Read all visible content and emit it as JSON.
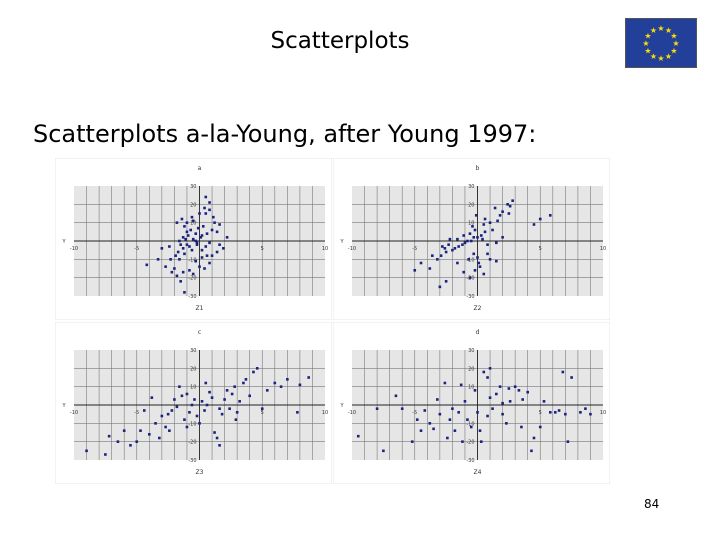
{
  "slide": {
    "title": "Scatterplots",
    "subtitle": "Scatterplots a-la-Young, after Young 1997:",
    "page_number": "84"
  },
  "flag": {
    "icon": "eu-flag-icon",
    "background": "#223f9a",
    "star_color": "#ffdd00"
  },
  "colors": {
    "point": "#1a237e",
    "plot_bg": "#e6e6e6",
    "gridline": "#7a7a7a"
  },
  "chart_data": [
    {
      "type": "scatter",
      "title": "a",
      "xlabel": "Z1",
      "ylabel": "Y",
      "xlim": [
        -10,
        10
      ],
      "ylim": [
        -30,
        30
      ],
      "grid": true,
      "x_ticks": [
        "-10",
        "-5",
        "5",
        "10"
      ],
      "y_ticks": [
        "30",
        "20",
        "10",
        "-10",
        "-20",
        "-30"
      ],
      "points": [
        [
          -1.2,
          -28
        ],
        [
          -1.5,
          -22
        ],
        [
          -0.5,
          -18
        ],
        [
          -2,
          -15
        ],
        [
          -2.3,
          -10
        ],
        [
          -1.6,
          -10
        ],
        [
          -1.9,
          -8
        ],
        [
          -1.2,
          -7
        ],
        [
          -0.6,
          -5
        ],
        [
          -1.3,
          -4
        ],
        [
          -0.8,
          -3
        ],
        [
          -1,
          -2
        ],
        [
          -1.5,
          -2
        ],
        [
          -0.2,
          -1
        ],
        [
          -1.6,
          0
        ],
        [
          -0.3,
          0
        ],
        [
          -1.1,
          1
        ],
        [
          -0.5,
          1
        ],
        [
          -1.3,
          2
        ],
        [
          -0.9,
          3
        ],
        [
          -0.3,
          4
        ],
        [
          0.2,
          3
        ],
        [
          -1,
          5
        ],
        [
          -0.7,
          6
        ],
        [
          -0.1,
          7
        ],
        [
          -1.2,
          8
        ],
        [
          -1,
          10
        ],
        [
          -1.8,
          10
        ],
        [
          -0.5,
          11
        ],
        [
          -0.6,
          13
        ],
        [
          0,
          15
        ],
        [
          0.5,
          15
        ],
        [
          0.8,
          17
        ],
        [
          0.4,
          18
        ],
        [
          0.2,
          -5
        ],
        [
          0.5,
          -3
        ],
        [
          0.8,
          -1
        ],
        [
          0.1,
          2
        ],
        [
          0.6,
          4
        ],
        [
          1,
          6
        ],
        [
          0.3,
          8
        ],
        [
          1.4,
          5
        ],
        [
          1.2,
          10
        ],
        [
          1.6,
          -2
        ],
        [
          2.2,
          2
        ],
        [
          0.2,
          -9
        ],
        [
          0.8,
          -12
        ],
        [
          0.4,
          -15
        ],
        [
          1,
          -8
        ],
        [
          1.4,
          -6
        ],
        [
          -0.3,
          -11
        ],
        [
          -1.7,
          -6
        ],
        [
          -2.4,
          -3
        ],
        [
          -3,
          -4
        ],
        [
          -3.3,
          -10
        ],
        [
          -4.2,
          -13
        ],
        [
          -2.7,
          -14
        ],
        [
          -2.2,
          -17
        ],
        [
          -1.8,
          -19
        ],
        [
          -1.3,
          -17
        ],
        [
          -0.8,
          -16
        ],
        [
          0,
          -14
        ],
        [
          0.6,
          -8
        ],
        [
          1.6,
          9
        ],
        [
          1.1,
          13
        ],
        [
          0.8,
          21
        ],
        [
          0.5,
          24
        ],
        [
          -0.2,
          -2
        ],
        [
          -1.4,
          12
        ],
        [
          1.9,
          -4
        ]
      ]
    },
    {
      "type": "scatter",
      "title": "b",
      "xlabel": "Z2",
      "ylabel": "Y",
      "xlim": [
        -10,
        10
      ],
      "ylim": [
        -30,
        30
      ],
      "grid": true,
      "x_ticks": [
        "-10",
        "-5",
        "5",
        "10"
      ],
      "y_ticks": [
        "30",
        "20",
        "10",
        "-10",
        "-20",
        "-30"
      ],
      "points": [
        [
          -3,
          -25
        ],
        [
          -2.5,
          -22
        ],
        [
          -5,
          -16
        ],
        [
          -4.5,
          -12
        ],
        [
          -3.8,
          -15
        ],
        [
          -3.2,
          -10
        ],
        [
          -2.9,
          -8
        ],
        [
          -2.5,
          -6
        ],
        [
          -2,
          -5
        ],
        [
          -1.8,
          -4
        ],
        [
          -1.5,
          -3
        ],
        [
          -2.3,
          -2
        ],
        [
          -1.2,
          -2
        ],
        [
          -1,
          -1
        ],
        [
          -0.8,
          0
        ],
        [
          -0.5,
          0
        ],
        [
          -1.6,
          1
        ],
        [
          -2.2,
          1
        ],
        [
          -0.3,
          2
        ],
        [
          0,
          2
        ],
        [
          -1.1,
          3
        ],
        [
          -0.6,
          4
        ],
        [
          0.3,
          3
        ],
        [
          0.6,
          5
        ],
        [
          -0.2,
          6
        ],
        [
          -0.4,
          8
        ],
        [
          0.5,
          9
        ],
        [
          1,
          10
        ],
        [
          1.6,
          11
        ],
        [
          0.6,
          12
        ],
        [
          1.8,
          14
        ],
        [
          2.5,
          15
        ],
        [
          2,
          16
        ],
        [
          1.4,
          18
        ],
        [
          2.4,
          20
        ],
        [
          2.8,
          22
        ],
        [
          2.6,
          19
        ],
        [
          4.5,
          9
        ],
        [
          5,
          12
        ],
        [
          5.8,
          14
        ],
        [
          0.2,
          -14
        ],
        [
          0.5,
          -18
        ],
        [
          0.1,
          -12
        ],
        [
          1,
          -10
        ],
        [
          0.8,
          -7
        ],
        [
          0,
          -9
        ],
        [
          -0.7,
          -10
        ],
        [
          -0.2,
          -16
        ],
        [
          -1.1,
          -17
        ],
        [
          -0.6,
          -20
        ],
        [
          -1.6,
          -12
        ],
        [
          -2.8,
          -3
        ],
        [
          0.8,
          -2
        ],
        [
          1.5,
          -1
        ],
        [
          0.4,
          1
        ],
        [
          -0.1,
          14
        ],
        [
          2,
          2
        ],
        [
          1.2,
          6
        ],
        [
          -2.6,
          -4
        ],
        [
          -3.6,
          -8
        ],
        [
          1.5,
          -11
        ],
        [
          -0.3,
          -7
        ]
      ]
    },
    {
      "type": "scatter",
      "title": "c",
      "xlabel": "Z3",
      "ylabel": "Y",
      "xlim": [
        -10,
        10
      ],
      "ylim": [
        -30,
        30
      ],
      "grid": true,
      "x_ticks": [
        "-10",
        "-5",
        "5",
        "10"
      ],
      "y_ticks": [
        "30",
        "20",
        "10",
        "-10",
        "-20",
        "-30"
      ],
      "points": [
        [
          -9,
          -25
        ],
        [
          -7.5,
          -27
        ],
        [
          -7.2,
          -17
        ],
        [
          -6.5,
          -20
        ],
        [
          -6,
          -14
        ],
        [
          -5.5,
          -22
        ],
        [
          -5,
          -20
        ],
        [
          -4.7,
          -14
        ],
        [
          -4.4,
          -3
        ],
        [
          -4,
          -16
        ],
        [
          -3.5,
          -10
        ],
        [
          -3.2,
          -18
        ],
        [
          -3,
          -6
        ],
        [
          -2.7,
          -12
        ],
        [
          -2.5,
          -5
        ],
        [
          -2.2,
          -3
        ],
        [
          -2,
          3
        ],
        [
          -1.8,
          -1
        ],
        [
          -1.6,
          10
        ],
        [
          -1.4,
          5
        ],
        [
          -1.2,
          -8
        ],
        [
          -1,
          -12
        ],
        [
          -0.8,
          -4
        ],
        [
          -0.6,
          0
        ],
        [
          -0.4,
          3
        ],
        [
          -0.2,
          -6
        ],
        [
          0,
          -10
        ],
        [
          0.2,
          2
        ],
        [
          0.4,
          -3
        ],
        [
          0.6,
          0
        ],
        [
          0.8,
          7
        ],
        [
          1,
          4
        ],
        [
          1.2,
          -15
        ],
        [
          1.4,
          -18
        ],
        [
          1.6,
          -22
        ],
        [
          1.8,
          -5
        ],
        [
          2,
          3
        ],
        [
          2.2,
          8
        ],
        [
          2.4,
          -2
        ],
        [
          2.6,
          6
        ],
        [
          2.8,
          10
        ],
        [
          3,
          -4
        ],
        [
          3.2,
          2
        ],
        [
          3.5,
          12
        ],
        [
          3.7,
          14
        ],
        [
          4,
          5
        ],
        [
          4.3,
          18
        ],
        [
          4.6,
          20
        ],
        [
          5,
          -2
        ],
        [
          5.4,
          8
        ],
        [
          6,
          12
        ],
        [
          6.5,
          10
        ],
        [
          7,
          14
        ],
        [
          7.8,
          -4
        ],
        [
          8,
          11
        ],
        [
          8.7,
          15
        ],
        [
          -3.8,
          4
        ],
        [
          -1,
          6
        ],
        [
          0.5,
          12
        ],
        [
          1.6,
          -2
        ],
        [
          2.9,
          -8
        ],
        [
          -2.4,
          -14
        ]
      ]
    },
    {
      "type": "scatter",
      "title": "d",
      "xlabel": "Z4",
      "ylabel": "Y",
      "xlim": [
        -10,
        10
      ],
      "ylim": [
        -30,
        30
      ],
      "grid": true,
      "x_ticks": [
        "-10",
        "-5",
        "5",
        "10"
      ],
      "y_ticks": [
        "30",
        "20",
        "10",
        "-10",
        "-20",
        "-30"
      ],
      "points": [
        [
          -9.5,
          -17
        ],
        [
          -8,
          -2
        ],
        [
          -7.5,
          -25
        ],
        [
          -6.5,
          5
        ],
        [
          -6,
          -2
        ],
        [
          -5.2,
          -20
        ],
        [
          -4.8,
          -8
        ],
        [
          -4.5,
          -14
        ],
        [
          -4.2,
          -3
        ],
        [
          -3.8,
          -10
        ],
        [
          -3.5,
          -13
        ],
        [
          -3.2,
          3
        ],
        [
          -3,
          -5
        ],
        [
          -2.6,
          12
        ],
        [
          -2.2,
          -8
        ],
        [
          -2,
          -2
        ],
        [
          -1.8,
          -14
        ],
        [
          -1.5,
          -4
        ],
        [
          -1.2,
          -20
        ],
        [
          -1,
          2
        ],
        [
          -0.8,
          -8
        ],
        [
          -0.5,
          -12
        ],
        [
          -0.2,
          8
        ],
        [
          0,
          -4
        ],
        [
          0.2,
          -14
        ],
        [
          0.5,
          18
        ],
        [
          0.8,
          -6
        ],
        [
          1,
          4
        ],
        [
          1.2,
          -2
        ],
        [
          1.5,
          6
        ],
        [
          1.8,
          10
        ],
        [
          2,
          -5
        ],
        [
          2.3,
          -10
        ],
        [
          2.6,
          2
        ],
        [
          3,
          10
        ],
        [
          3.3,
          8
        ],
        [
          3.6,
          3
        ],
        [
          4,
          7
        ],
        [
          4.5,
          -18
        ],
        [
          5,
          -12
        ],
        [
          5.3,
          2
        ],
        [
          5.8,
          -4
        ],
        [
          6.2,
          -4
        ],
        [
          6.5,
          -3
        ],
        [
          7,
          -5
        ],
        [
          6.8,
          18
        ],
        [
          7.2,
          -20
        ],
        [
          7.5,
          15
        ],
        [
          8.2,
          -4
        ],
        [
          8.6,
          -2
        ],
        [
          9,
          -5
        ],
        [
          1,
          20
        ],
        [
          0.8,
          15
        ],
        [
          0.3,
          -20
        ],
        [
          -1.3,
          11
        ],
        [
          2,
          1
        ],
        [
          3.5,
          -12
        ],
        [
          -2.4,
          -18
        ],
        [
          4.3,
          -25
        ],
        [
          2.5,
          9
        ]
      ]
    }
  ]
}
